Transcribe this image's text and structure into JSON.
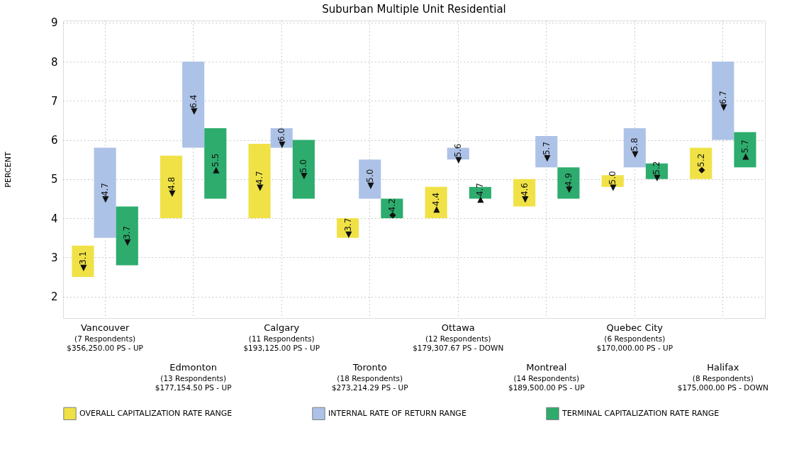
{
  "chart_data": {
    "type": "bar",
    "title": "Suburban Multiple Unit Residential",
    "ylabel": "PERCENT",
    "categories": [
      "Vancouver\n(7 Respondents)\n$356,250.00 PS - UP",
      "Edmonton\n(13 Respondents)\n$177,154.50 PS - UP",
      "Calgary\n(11 Respondents)\n$193,125.00 PS - UP",
      "Toronto\n(18 Respondents)\n$273,214.29 PS - UP",
      "Ottawa\n(12 Respondents)\n$179,307.67 PS - DOWN",
      "Montreal\n(14 Respondents)\n$189,500.00 PS - UP",
      "Quebec City\n(6 Respondents)\n$170,000.00 PS - UP",
      "Halifax\n(8 Respondents)\n$175,000.00 PS - DOWN"
    ],
    "series": [
      {
        "name": "OVERALL CAPITALIZATION RATE RANGE",
        "color": "#efe03c",
        "base": [
          2.5,
          4.0,
          4.0,
          3.5,
          4.0,
          4.3,
          4.8,
          5.0
        ],
        "values": [
          0.8,
          1.6,
          1.9,
          0.5,
          0.8,
          0.7,
          0.3,
          0.8
        ]
      },
      {
        "name": "INTERNAL RATE OF RETURN RANGE",
        "color": "#a9bfe6",
        "base": [
          3.5,
          5.8,
          5.8,
          4.5,
          5.5,
          5.3,
          5.3,
          6.0
        ],
        "values": [
          2.3,
          2.2,
          0.5,
          1.0,
          0.3,
          0.8,
          1.0,
          2.0
        ]
      },
      {
        "name": "TERMINAL CAPITALIZATION RATE RANGE",
        "color": "#22a865",
        "base": [
          2.8,
          4.5,
          4.5,
          4.0,
          4.5,
          4.5,
          5.0,
          5.3
        ],
        "values": [
          1.5,
          1.8,
          1.5,
          0.5,
          0.3,
          0.8,
          0.4,
          0.9
        ]
      }
    ],
    "annotations": [
      "◀3.1",
      "◀4.8",
      "◀4.7",
      "◀3.7",
      "▶4.4",
      "◀4.6",
      "◀5.0",
      "◆5.2",
      "◀4.7",
      "◀6.4",
      "◀6.0",
      "◀5.0",
      "◀5.6",
      "◀5.7",
      "◀5.8",
      "◀6.7",
      "◀3.7",
      "▶5.5",
      "◀5.0",
      "◆4.2",
      "▶4.7",
      "◀4.9",
      "◀5.2",
      "▶5.7"
    ],
    "ylim": [
      1.45,
      9.05
    ],
    "yticks": [
      2,
      3,
      4,
      5,
      6,
      7,
      8,
      9
    ],
    "grid": true,
    "legend": "bottom"
  }
}
